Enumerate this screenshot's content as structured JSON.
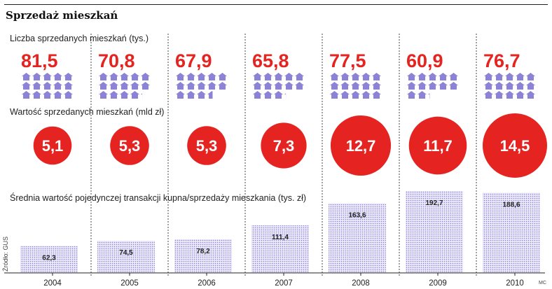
{
  "title": "Sprzedaż mieszkań",
  "source": "Źródło: GUS",
  "signature": "MC",
  "colors": {
    "red": "#e52421",
    "house": "#8c83d6",
    "bar_dots": "#8c83d6",
    "bar_bg": "#eceaf8"
  },
  "icon": "house-icon",
  "chart_data": {
    "type": "bar",
    "categories": [
      "2004",
      "2005",
      "2006",
      "2007",
      "2008",
      "2009",
      "2010"
    ],
    "sections": [
      {
        "label": "Liczba sprzedanych mieszkań (tys.)",
        "type": "pictogram",
        "display": [
          "81,5",
          "70,8",
          "67,9",
          "65,8",
          "77,5",
          "60,9",
          "76,7"
        ],
        "values": [
          81.5,
          70.8,
          67.9,
          65.8,
          77.5,
          60.9,
          76.7
        ]
      },
      {
        "label": "Wartość sprzedanych mieszkań (mld zł)",
        "type": "bubble",
        "display": [
          "5,1",
          "5,3",
          "5,3",
          "7,3",
          "12,7",
          "11,7",
          "14,5"
        ],
        "values": [
          5.1,
          5.3,
          5.3,
          7.3,
          12.7,
          11.7,
          14.5
        ]
      },
      {
        "label": "Średnia wartość pojedynczej transakcji kupna/sprzedaży mieszkania (tys. zł)",
        "type": "bar",
        "display": [
          "62,3",
          "74,5",
          "78,2",
          "111,4",
          "163,6",
          "192,7",
          "188,6"
        ],
        "values": [
          62.3,
          74.5,
          78.2,
          111.4,
          163.6,
          192.7,
          188.6
        ],
        "ylim": [
          0,
          192.7
        ]
      }
    ]
  }
}
